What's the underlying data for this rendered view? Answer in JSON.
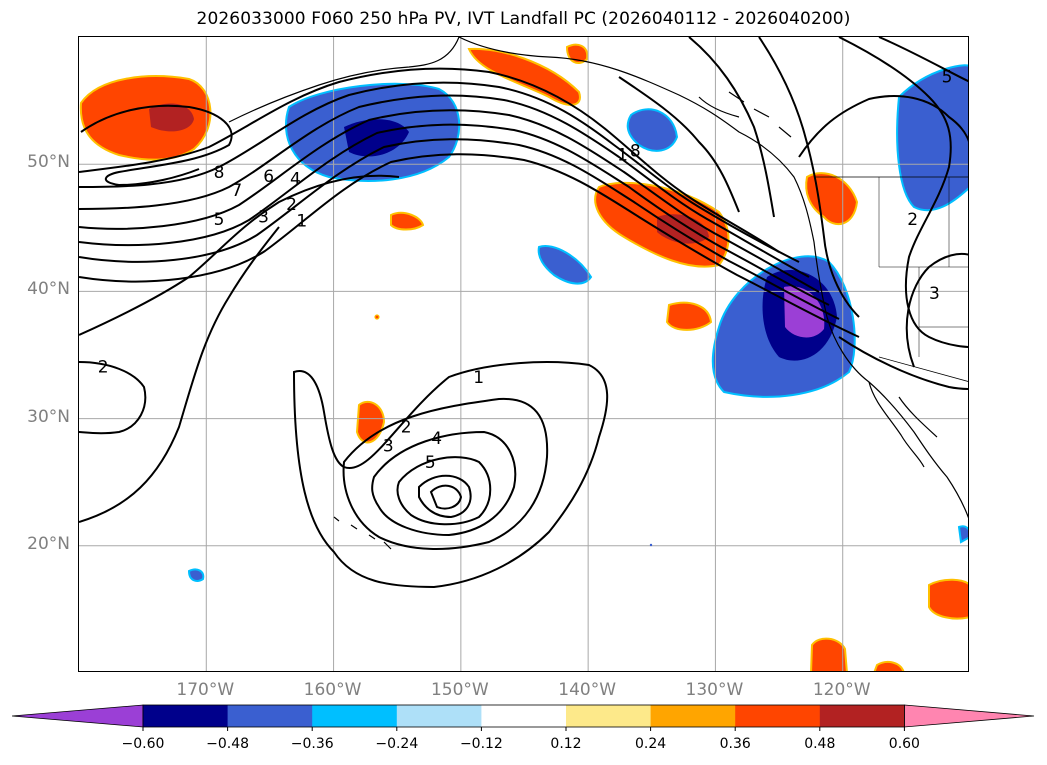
{
  "title": "2026033000 F060 250 hPa PV, IVT Landfall PC (2026040112 - 2026040200)",
  "map": {
    "lat_ticks": [
      {
        "label": "50°N",
        "lat": 50
      },
      {
        "label": "40°N",
        "lat": 40
      },
      {
        "label": "30°N",
        "lat": 30
      },
      {
        "label": "20°N",
        "lat": 20
      }
    ],
    "lon_ticks": [
      {
        "label": "170°W",
        "lon": -170
      },
      {
        "label": "160°W",
        "lon": -160
      },
      {
        "label": "150°W",
        "lon": -150
      },
      {
        "label": "140°W",
        "lon": -140
      },
      {
        "label": "130°W",
        "lon": -130
      },
      {
        "label": "120°W",
        "lon": -120
      }
    ],
    "extent": {
      "lon_min": -180,
      "lon_max": -110,
      "lat_min": 10,
      "lat_max": 60
    },
    "contour_labels": [
      {
        "text": "8",
        "lon": -169.0,
        "lat": 49.3
      },
      {
        "text": "7",
        "lon": -167.6,
        "lat": 47.9
      },
      {
        "text": "6",
        "lon": -165.1,
        "lat": 49.0
      },
      {
        "text": "4",
        "lon": -163.0,
        "lat": 48.8
      },
      {
        "text": "5",
        "lon": -169.0,
        "lat": 45.6
      },
      {
        "text": "3",
        "lon": -165.5,
        "lat": 45.8
      },
      {
        "text": "2",
        "lon": -163.3,
        "lat": 46.8
      },
      {
        "text": "1",
        "lon": -162.5,
        "lat": 45.5
      },
      {
        "text": "2",
        "lon": -178.1,
        "lat": 34.0
      },
      {
        "text": "1",
        "lon": -148.6,
        "lat": 33.2
      },
      {
        "text": "2",
        "lon": -154.3,
        "lat": 29.3
      },
      {
        "text": "3",
        "lon": -155.7,
        "lat": 27.8
      },
      {
        "text": "4",
        "lon": -151.9,
        "lat": 28.4
      },
      {
        "text": "5",
        "lon": -152.4,
        "lat": 26.5
      },
      {
        "text": "8",
        "lon": -136.3,
        "lat": 51.0
      },
      {
        "text": "1",
        "lon": -137.3,
        "lat": 50.7
      },
      {
        "text": "5",
        "lon": -111.8,
        "lat": 56.8
      },
      {
        "text": "2",
        "lon": -114.5,
        "lat": 45.6
      },
      {
        "text": "3",
        "lon": -112.8,
        "lat": 39.8
      }
    ]
  },
  "colorbar": {
    "colors": [
      "#9b3fd6",
      "#00008b",
      "#3a5fd0",
      "#00bfff",
      "#aee0f8",
      "#ffffff",
      "#fde98a",
      "#ffa500",
      "#ff4500",
      "#b22222",
      "#ff85b0"
    ],
    "levels": [
      -0.6,
      -0.48,
      -0.36,
      -0.24,
      -0.12,
      0.12,
      0.24,
      0.36,
      0.48,
      0.6
    ],
    "tick_labels": [
      "−0.60",
      "−0.48",
      "−0.36",
      "−0.24",
      "−0.12",
      "0.12",
      "0.24",
      "0.36",
      "0.48",
      "0.60"
    ]
  }
}
